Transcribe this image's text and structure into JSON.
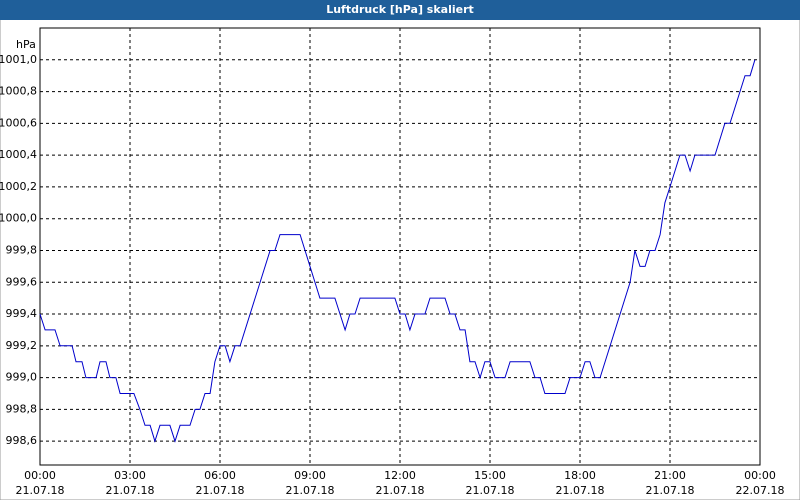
{
  "chart_data": {
    "type": "line",
    "title": "Luftdruck [hPa] skaliert",
    "y_unit": "hPa",
    "x": [
      0,
      0.17,
      0.5,
      0.67,
      1.07,
      1.2,
      1.4,
      1.53,
      1.87,
      2.0,
      2.2,
      2.33,
      2.53,
      2.67,
      3.13,
      3.33,
      3.5,
      3.67,
      3.83,
      4.0,
      4.33,
      4.5,
      4.67,
      5.0,
      5.17,
      5.33,
      5.5,
      5.67,
      5.83,
      6.0,
      6.17,
      6.33,
      6.5,
      6.67,
      7.67,
      7.83,
      8.0,
      8.67,
      9.0,
      9.33,
      9.83,
      10.17,
      10.33,
      10.5,
      10.67,
      11.83,
      12.0,
      12.17,
      12.33,
      12.5,
      12.83,
      13.0,
      13.5,
      13.67,
      13.83,
      14.0,
      14.17,
      14.33,
      14.5,
      14.67,
      14.83,
      15.0,
      15.17,
      15.5,
      15.67,
      16.33,
      16.5,
      16.67,
      16.83,
      17.5,
      17.67,
      18.0,
      18.17,
      18.33,
      18.5,
      18.67,
      19.67,
      19.83,
      20.0,
      20.17,
      20.33,
      20.5,
      20.67,
      20.83,
      21.0,
      21.33,
      21.5,
      21.67,
      21.83,
      22.5,
      22.83,
      23.0,
      23.5,
      23.67,
      23.83
    ],
    "series": [
      {
        "name": "Luftdruck",
        "color": "#0000cc",
        "values": [
          999.4,
          999.3,
          999.3,
          999.2,
          999.2,
          999.1,
          999.1,
          999.0,
          999.0,
          999.1,
          999.1,
          999.0,
          999.0,
          998.9,
          998.9,
          998.8,
          998.7,
          998.7,
          998.6,
          998.7,
          998.7,
          998.6,
          998.7,
          998.7,
          998.8,
          998.8,
          998.9,
          998.9,
          999.1,
          999.2,
          999.2,
          999.1,
          999.2,
          999.2,
          999.8,
          999.8,
          999.9,
          999.9,
          999.7,
          999.5,
          999.5,
          999.3,
          999.4,
          999.4,
          999.5,
          999.5,
          999.4,
          999.4,
          999.3,
          999.4,
          999.4,
          999.5,
          999.5,
          999.4,
          999.4,
          999.3,
          999.3,
          999.1,
          999.1,
          999.0,
          999.1,
          999.1,
          999.0,
          999.0,
          999.1,
          999.1,
          999.0,
          999.0,
          998.9,
          998.9,
          999.0,
          999.0,
          999.1,
          999.1,
          999.0,
          999.0,
          999.6,
          999.8,
          999.7,
          999.7,
          999.8,
          999.8,
          999.9,
          1000.1,
          1000.2,
          1000.4,
          1000.4,
          1000.3,
          1000.4,
          1000.4,
          1000.6,
          1000.6,
          1000.9,
          1000.9,
          1001.0
        ]
      }
    ],
    "xlim": [
      0,
      24
    ],
    "xticks": [
      {
        "value": 0,
        "label": "00:00"
      },
      {
        "value": 3,
        "label": "03:00"
      },
      {
        "value": 6,
        "label": "06:00"
      },
      {
        "value": 9,
        "label": "09:00"
      },
      {
        "value": 12,
        "label": "12:00"
      },
      {
        "value": 15,
        "label": "15:00"
      },
      {
        "value": 18,
        "label": "18:00"
      },
      {
        "value": 21,
        "label": "21:00"
      },
      {
        "value": 24,
        "label": "00:00"
      }
    ],
    "xtick_dates": [
      "21.07.18",
      "21.07.18",
      "21.07.18",
      "21.07.18",
      "21.07.18",
      "21.07.18",
      "21.07.18",
      "21.07.18",
      "22.07.18"
    ],
    "ylim": [
      998.45,
      1001.2
    ],
    "yticks": [
      {
        "value": 998.6,
        "label": "998,6"
      },
      {
        "value": 998.8,
        "label": "998,8"
      },
      {
        "value": 999.0,
        "label": "999,0"
      },
      {
        "value": 999.2,
        "label": "999,2"
      },
      {
        "value": 999.4,
        "label": "999,4"
      },
      {
        "value": 999.6,
        "label": "999,6"
      },
      {
        "value": 999.8,
        "label": "999,8"
      },
      {
        "value": 1000.0,
        "label": "1000,0"
      },
      {
        "value": 1000.2,
        "label": "1000,2"
      },
      {
        "value": 1000.4,
        "label": "1000,4"
      },
      {
        "value": 1000.6,
        "label": "1000,6"
      },
      {
        "value": 1000.8,
        "label": "1000,8"
      },
      {
        "value": 1001.0,
        "label": "1001,0"
      }
    ],
    "grid": true
  }
}
